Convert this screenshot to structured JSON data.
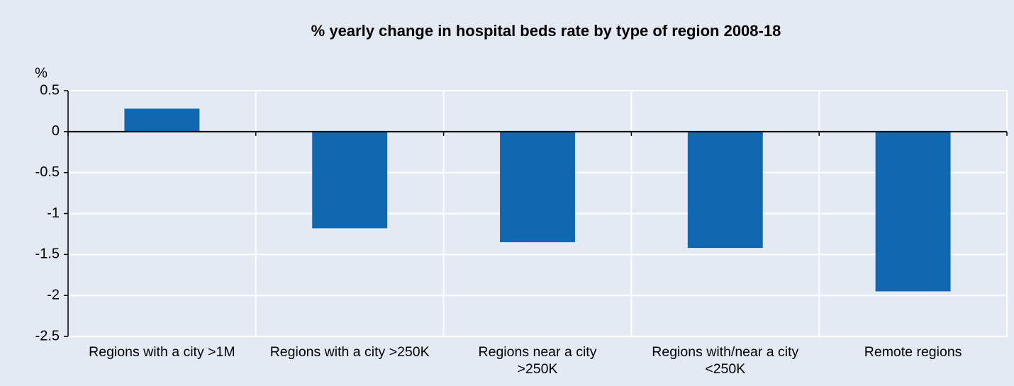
{
  "chart_data": {
    "type": "bar",
    "title": "% yearly change in hospital beds rate by  type of region 2008-18",
    "y_label": "%",
    "categories": [
      "Regions with a city >1M",
      "Regions with a city >250K",
      "Regions near a city >250K",
      "Regions with/near a city <250K",
      "Remote regions"
    ],
    "values": [
      0.28,
      -1.18,
      -1.35,
      -1.42,
      -1.95
    ],
    "color": "#0f68b0",
    "ylim": [
      -2.5,
      0.5
    ],
    "yticks": [
      0.5,
      0,
      -0.5,
      -1,
      -1.5,
      -2,
      -2.5
    ],
    "grid": true
  }
}
